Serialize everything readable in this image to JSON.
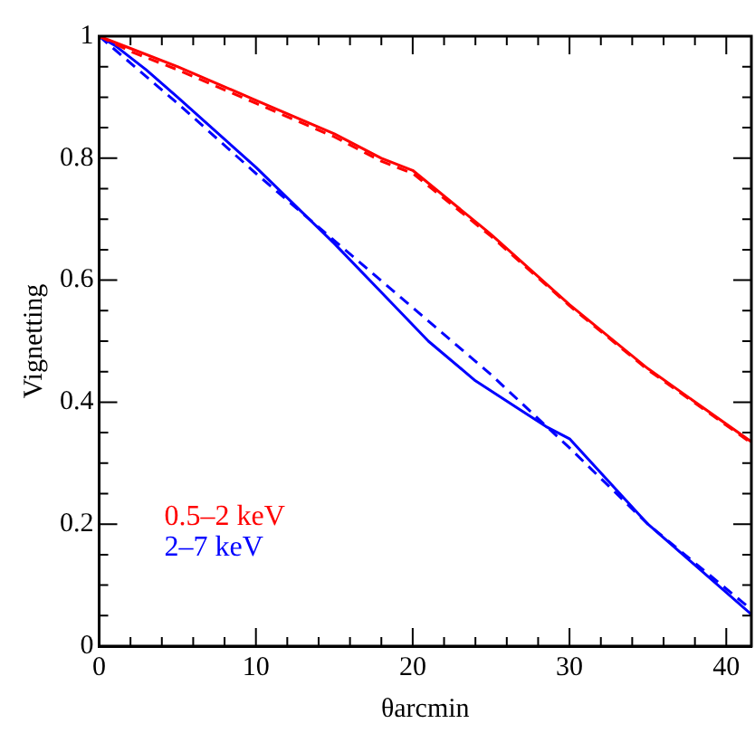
{
  "chart_data": {
    "type": "line",
    "xlabel": "θarcmin",
    "ylabel": "Vignetting",
    "xlim": [
      0,
      41.6
    ],
    "ylim": [
      0,
      1
    ],
    "xticks": [
      0,
      {
        "value": 2,
        "label": null
      },
      {
        "value": 4,
        "label": null
      },
      {
        "value": 6,
        "label": null
      },
      {
        "value": 8,
        "label": null
      },
      10,
      {
        "value": 12,
        "label": null
      },
      {
        "value": 14,
        "label": null
      },
      {
        "value": 16,
        "label": null
      },
      {
        "value": 18,
        "label": null
      },
      20,
      {
        "value": 22,
        "label": null
      },
      {
        "value": 24,
        "label": null
      },
      {
        "value": 26,
        "label": null
      },
      {
        "value": 28,
        "label": null
      },
      30,
      {
        "value": 32,
        "label": null
      },
      {
        "value": 34,
        "label": null
      },
      {
        "value": 36,
        "label": null
      },
      {
        "value": 38,
        "label": null
      },
      40
    ],
    "yticks": [
      0,
      {
        "value": 0.05,
        "label": null
      },
      {
        "value": 0.1,
        "label": null
      },
      {
        "value": 0.15,
        "label": null
      },
      0.2,
      {
        "value": 0.25,
        "label": null
      },
      {
        "value": 0.3,
        "label": null
      },
      {
        "value": 0.35,
        "label": null
      },
      0.4,
      {
        "value": 0.45,
        "label": null
      },
      {
        "value": 0.5,
        "label": null
      },
      {
        "value": 0.55,
        "label": null
      },
      0.6,
      {
        "value": 0.65,
        "label": null
      },
      {
        "value": 0.7,
        "label": null
      },
      {
        "value": 0.75,
        "label": null
      },
      0.8,
      {
        "value": 0.85,
        "label": null
      },
      {
        "value": 0.9,
        "label": null
      },
      {
        "value": 0.95,
        "label": null
      },
      1
    ],
    "grid": false,
    "legend": "bottom left",
    "marker": "none",
    "series": [
      {
        "name": "0.5–2 keV",
        "color": "#ff0000",
        "line_style": "solid",
        "x": [
          0,
          2,
          5,
          10,
          15,
          18,
          20,
          25,
          30,
          35,
          41.6
        ],
        "values": [
          1.0,
          0.98,
          0.95,
          0.895,
          0.84,
          0.8,
          0.78,
          0.675,
          0.56,
          0.455,
          0.335
        ]
      },
      {
        "color": "#ff0000",
        "line_style": "dashed",
        "x": [
          0,
          2,
          5,
          10,
          15,
          18,
          20,
          25,
          30,
          35,
          41.6
        ],
        "values": [
          1.0,
          0.975,
          0.945,
          0.89,
          0.835,
          0.795,
          0.775,
          0.672,
          0.558,
          0.453,
          0.333
        ]
      },
      {
        "name": "2–7 keV",
        "color": "#0000ff",
        "line_style": "solid",
        "x": [
          0,
          1,
          3,
          5,
          10,
          15,
          18,
          21,
          24,
          27,
          28.5,
          30,
          35,
          41.6
        ],
        "values": [
          1.0,
          0.985,
          0.945,
          0.9,
          0.785,
          0.66,
          0.58,
          0.5,
          0.435,
          0.385,
          0.36,
          0.34,
          0.2,
          0.052
        ]
      },
      {
        "color": "#0000ff",
        "line_style": "dashed",
        "x": [
          0,
          5,
          10,
          15,
          20,
          25,
          30,
          35,
          41.6
        ],
        "values": [
          1.0,
          0.89,
          0.775,
          0.665,
          0.555,
          0.445,
          0.325,
          0.2,
          0.06
        ]
      }
    ]
  }
}
